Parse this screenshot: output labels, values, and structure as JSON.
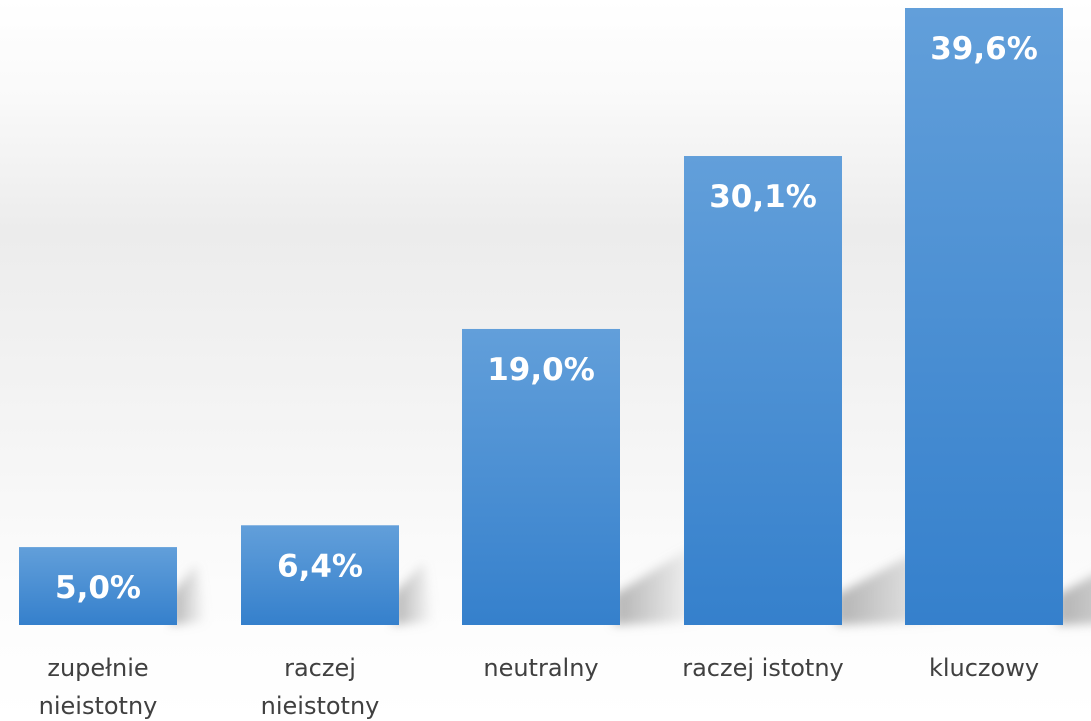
{
  "chart_data": {
    "type": "bar",
    "categories": [
      [
        "zupełnie",
        "nieistotny"
      ],
      [
        "raczej",
        "nieistotny"
      ],
      [
        "neutralny"
      ],
      [
        "raczej istotny"
      ],
      [
        "kluczowy"
      ]
    ],
    "values": [
      5.0,
      6.4,
      19.0,
      30.1,
      39.6
    ],
    "value_labels": [
      "5,0%",
      "6,4%",
      "19,0%",
      "30,1%",
      "39,6%"
    ],
    "unit": "%",
    "title": "",
    "xlabel": "",
    "ylabel": "",
    "ylim": [
      0,
      39.6
    ],
    "grid": false,
    "legend": "none",
    "colors": {
      "bar_top": "#629fda",
      "bar_bottom": "#3580cc",
      "value_text": "#ffffff",
      "category_text": "#404040",
      "shadow": "#9a9a9a"
    }
  }
}
